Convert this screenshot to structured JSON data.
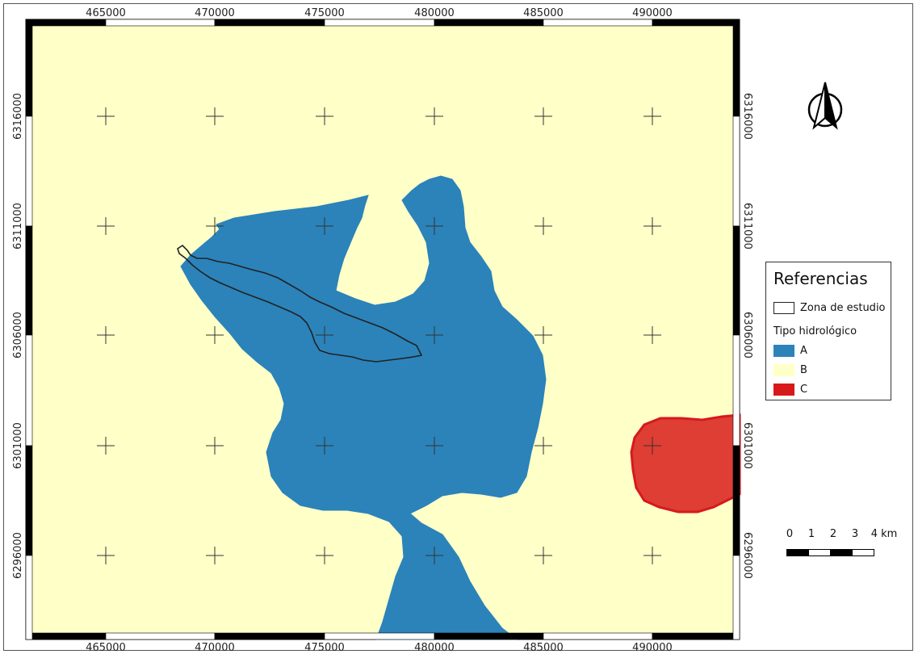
{
  "map": {
    "colors": {
      "type_a": "#2b83ba",
      "type_b": "#ffffc8",
      "type_c": "#d7191c",
      "study_zone_outline": "#222222"
    },
    "x_ticks": [
      "465000",
      "470000",
      "475000",
      "480000",
      "485000",
      "490000"
    ],
    "y_ticks": [
      "6316000",
      "6311000",
      "6306000",
      "6301000",
      "6296000"
    ],
    "north_arrow": "north-arrow-icon"
  },
  "legend": {
    "title": "Referencias",
    "study_zone_label": "Zona de estudio",
    "group_title": "Tipo hidrológico",
    "items": [
      {
        "label": "A",
        "color": "#2b83ba"
      },
      {
        "label": "B",
        "color": "#ffffc8"
      },
      {
        "label": "C",
        "color": "#d7191c"
      }
    ]
  },
  "scalebar": {
    "labels": [
      "0",
      "1",
      "2",
      "3",
      "4 km"
    ]
  }
}
